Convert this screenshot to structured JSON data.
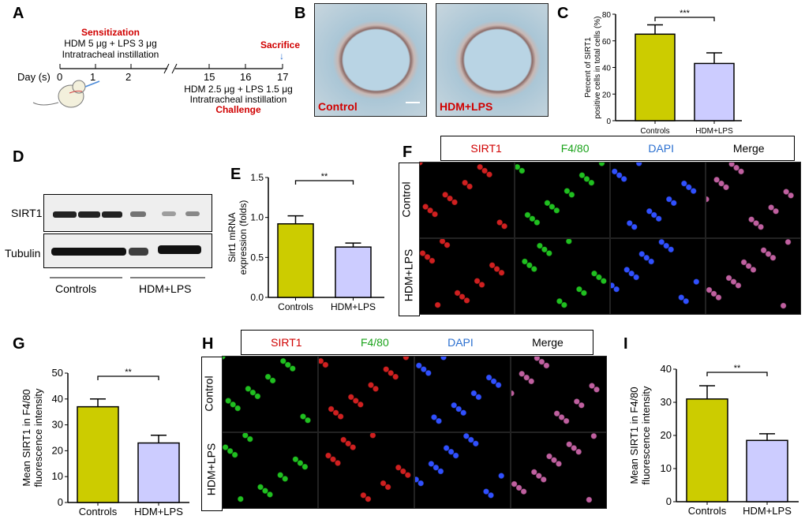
{
  "panels": {
    "a": "A",
    "b": "B",
    "c": "C",
    "d": "D",
    "e": "E",
    "f": "F",
    "g": "G",
    "h": "H",
    "i": "I"
  },
  "timeline": {
    "sensitization": "Sensitization",
    "sens_dose": "HDM 5 μg + LPS 3 μg",
    "sens_route": "Intratracheal instillation",
    "sacrifice": "Sacrifice",
    "day_label": "Day (s)",
    "days": [
      "0",
      "1",
      "2",
      "15",
      "16",
      "17"
    ],
    "chal_dose": "HDM 2.5 μg + LPS 1.5 μg",
    "chal_route": "Intratracheal instillation",
    "challenge": "Challenge"
  },
  "histology": {
    "control": "Control",
    "hdm": "HDM+LPS"
  },
  "western": {
    "sirt1": "SIRT1",
    "tubulin": "Tubulin",
    "controls": "Controls",
    "hdm": "HDM+LPS"
  },
  "stain_f": {
    "channels": [
      "SIRT1",
      "F4/80",
      "DAPI",
      "Merge"
    ],
    "rows": [
      "Control",
      "HDM+LPS"
    ]
  },
  "stain_h": {
    "channels": [
      "SIRT1",
      "F4/80",
      "DAPI",
      "Merge"
    ],
    "rows": [
      "Control",
      "HDM+LPS"
    ]
  },
  "colors": {
    "controls": "#cccc00",
    "hdm": "#ccccff",
    "red": "#d00000",
    "green": "#1aa31a",
    "blue": "#2a6fd0"
  },
  "chart_data": [
    {
      "panel": "C",
      "type": "bar",
      "categories": [
        "Controls",
        "HDM+LPS"
      ],
      "values": [
        65,
        43
      ],
      "errors": [
        7,
        8
      ],
      "ylabel": [
        "Percent of SIRT1",
        "positive cells in total cells (%)"
      ],
      "ylim": [
        0,
        80
      ],
      "yticks": [
        "0",
        "20",
        "40",
        "60",
        "80"
      ],
      "significance": "***"
    },
    {
      "panel": "E",
      "type": "bar",
      "categories": [
        "Controls",
        "HDM+LPS"
      ],
      "values": [
        0.92,
        0.63
      ],
      "errors": [
        0.1,
        0.05
      ],
      "ylabel": [
        "Sirt1 mRNA",
        "expression (folds)"
      ],
      "ylim": [
        0,
        1.5
      ],
      "yticks": [
        "0.0",
        "0.5",
        "1.0",
        "1.5"
      ],
      "significance": "**"
    },
    {
      "panel": "G",
      "type": "bar",
      "categories": [
        "Controls",
        "HDM+LPS"
      ],
      "values": [
        37,
        23
      ],
      "errors": [
        3,
        3
      ],
      "ylabel": [
        "Mean SIRT1 in F4/80",
        "fluorescence intensity"
      ],
      "ylim": [
        0,
        50
      ],
      "yticks": [
        "0",
        "10",
        "20",
        "30",
        "40",
        "50"
      ],
      "significance": "**"
    },
    {
      "panel": "I",
      "type": "bar",
      "categories": [
        "Controls",
        "HDM+LPS"
      ],
      "values": [
        31,
        18.5
      ],
      "errors": [
        4,
        2
      ],
      "ylabel": [
        "Mean SIRT1 in F4/80",
        "fluorescence intensity"
      ],
      "ylim": [
        0,
        40
      ],
      "yticks": [
        "0",
        "10",
        "20",
        "30",
        "40"
      ],
      "significance": "**"
    }
  ]
}
